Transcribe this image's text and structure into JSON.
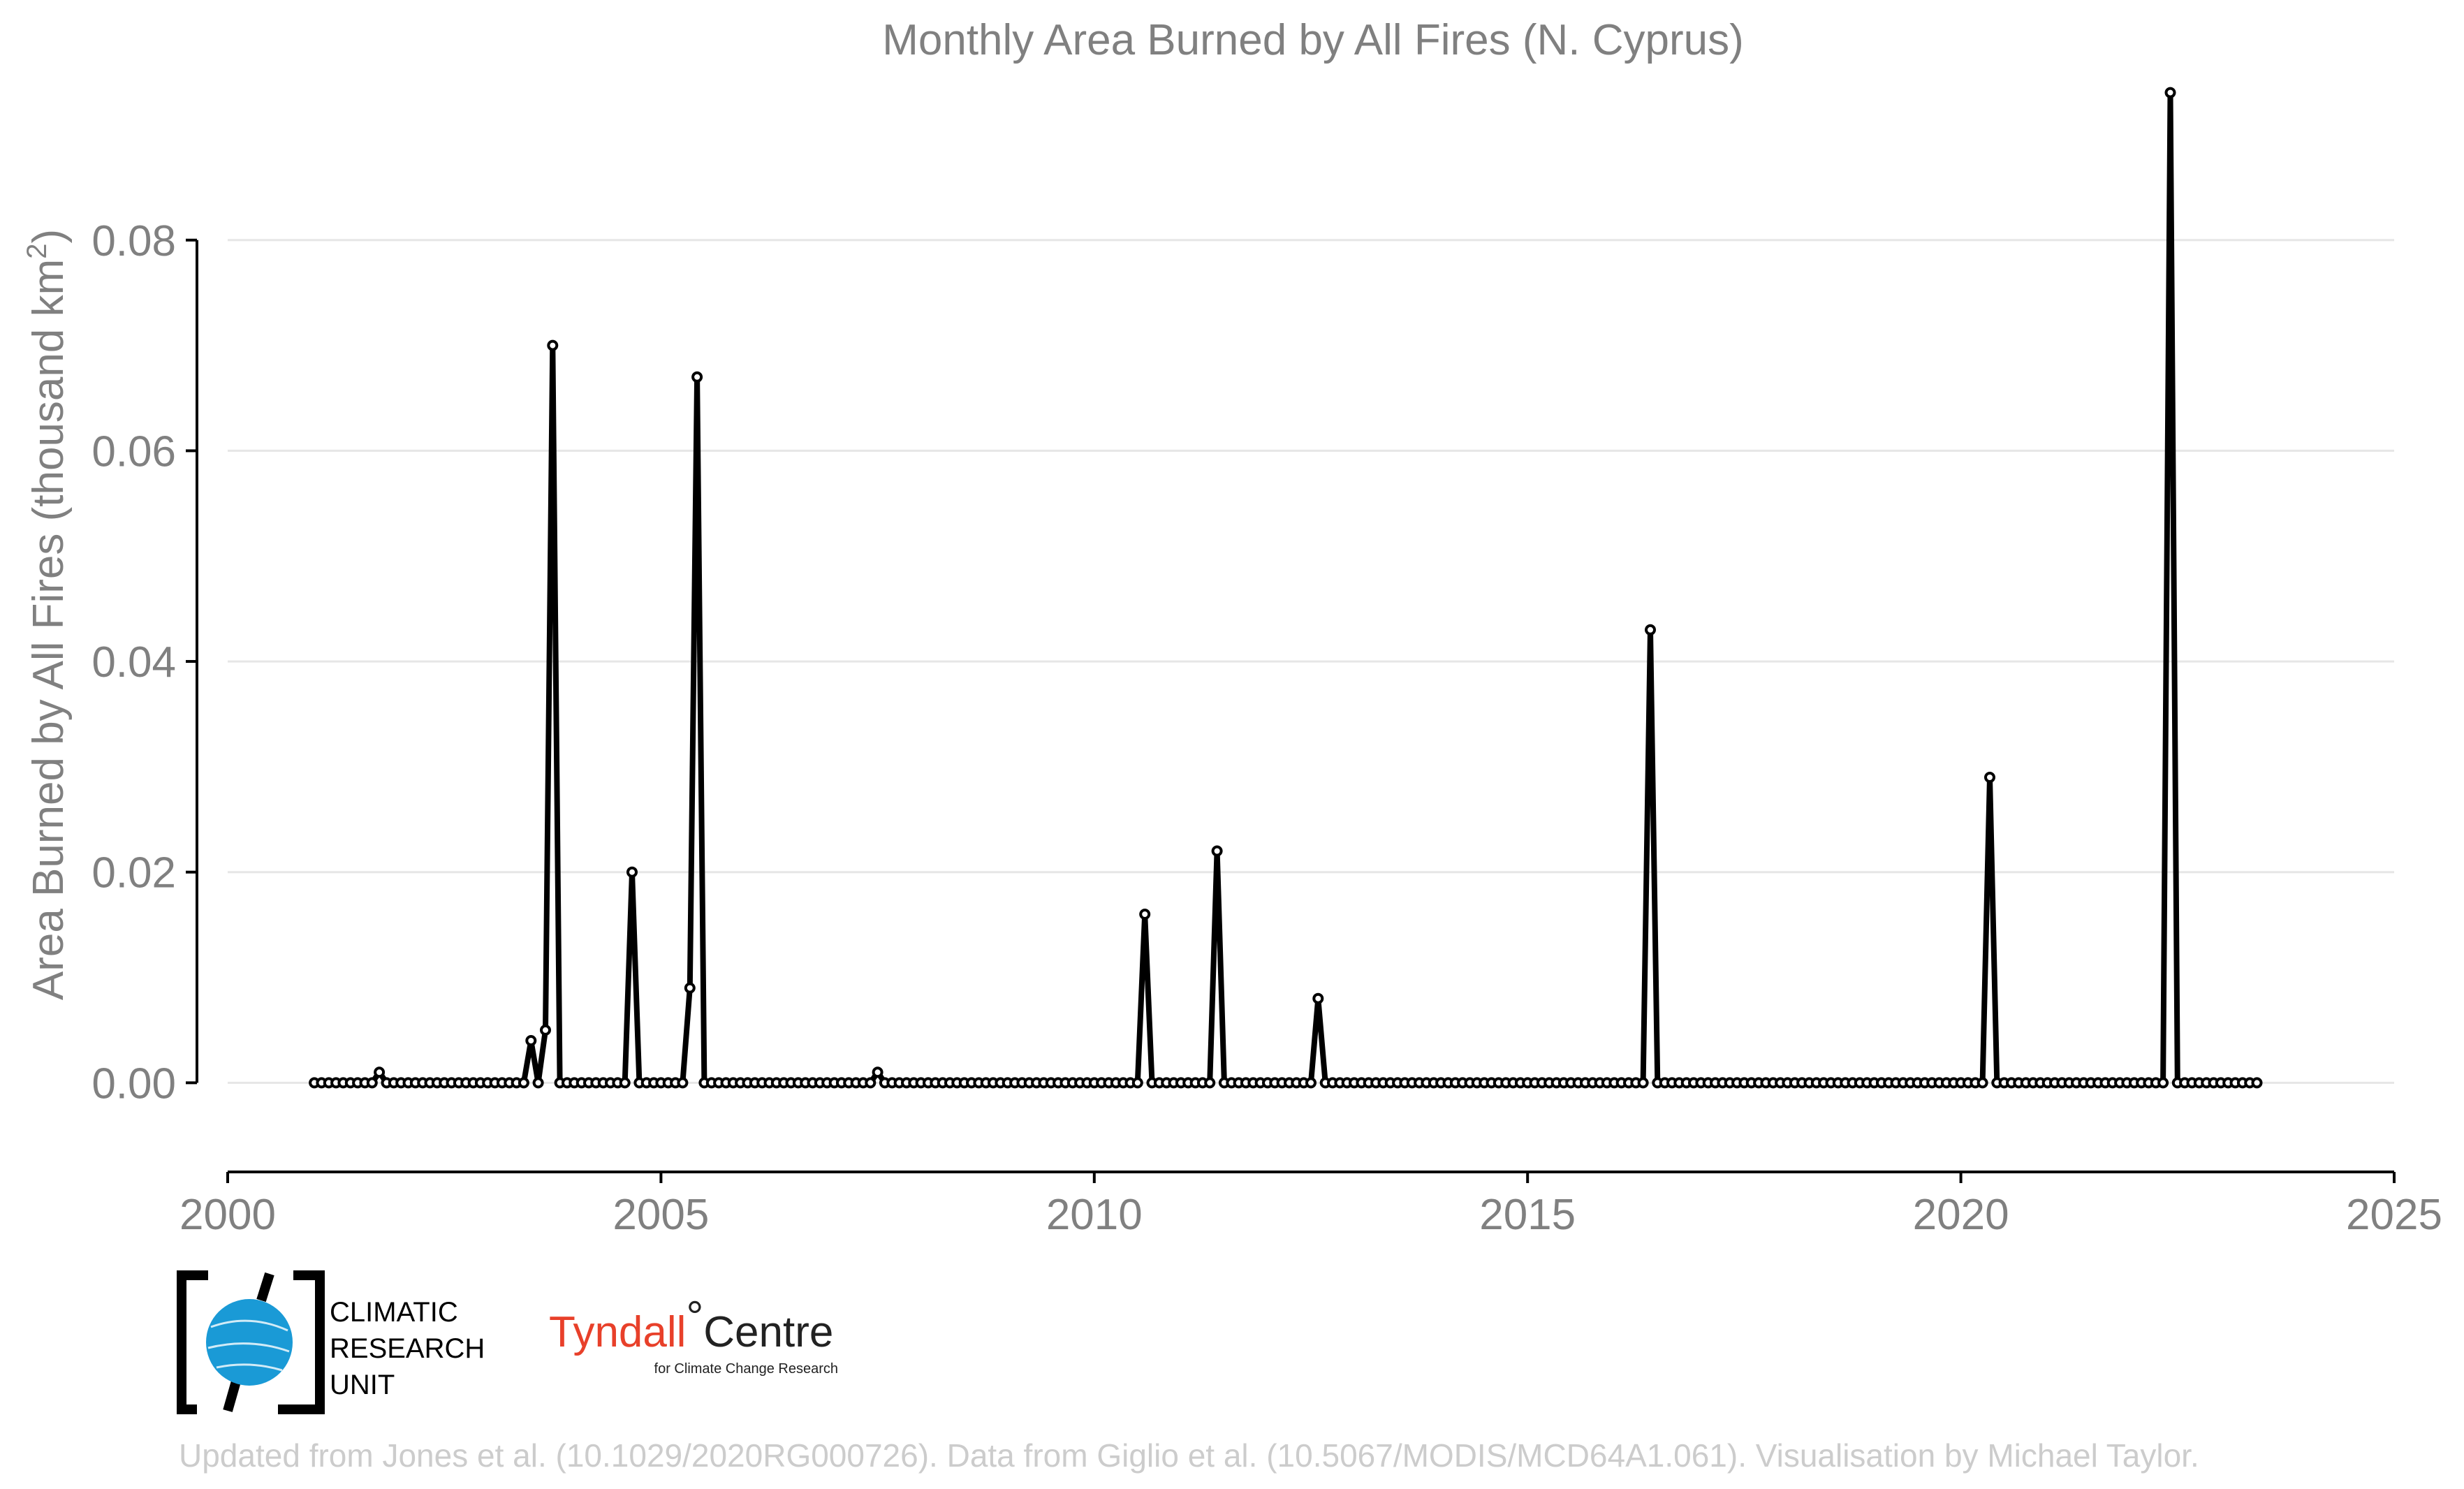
{
  "chart_data": {
    "type": "line",
    "title": "Monthly Area Burned by All Fires (N. Cyprus)",
    "ylabel_main": "Area Burned by All Fires (thousand km",
    "ylabel_sup": "2",
    "ylabel_close": ")",
    "xlabel": "",
    "xlim": [
      2000,
      2025
    ],
    "ylim": [
      -0.0078,
      0.0955
    ],
    "x_ticks": [
      2000,
      2005,
      2010,
      2015,
      2020,
      2025
    ],
    "x_tick_labels": [
      "2000",
      "2005",
      "2010",
      "2015",
      "2020",
      "2025"
    ],
    "y_ticks": [
      0.0,
      0.02,
      0.04,
      0.06,
      0.08
    ],
    "y_tick_labels": [
      "0.00",
      "0.02",
      "0.04",
      "0.06",
      "0.08"
    ],
    "grid": "horizontal",
    "legend": "none",
    "series": [
      {
        "start_year": 2001,
        "start_month": 1,
        "month_step": 1,
        "values": [
          0,
          0,
          0,
          0,
          0,
          0,
          0,
          0,
          0,
          0.001,
          0,
          0,
          0,
          0,
          0,
          0,
          0,
          0,
          0,
          0,
          0,
          0,
          0,
          0,
          0,
          0,
          0,
          0,
          0,
          0,
          0.004,
          0,
          0.005,
          0.07,
          0,
          0,
          0,
          0,
          0,
          0,
          0,
          0,
          0,
          0,
          0.02,
          0,
          0,
          0,
          0,
          0,
          0,
          0,
          0.009,
          0.067,
          0,
          0,
          0,
          0,
          0,
          0,
          0,
          0,
          0,
          0,
          0,
          0,
          0,
          0,
          0,
          0,
          0,
          0,
          0,
          0,
          0,
          0,
          0,
          0,
          0.001,
          0,
          0,
          0,
          0,
          0,
          0,
          0,
          0,
          0,
          0,
          0,
          0,
          0,
          0,
          0,
          0,
          0,
          0,
          0,
          0,
          0,
          0,
          0,
          0,
          0,
          0,
          0,
          0,
          0,
          0,
          0,
          0,
          0,
          0,
          0,
          0,
          0.016,
          0,
          0,
          0,
          0,
          0,
          0,
          0,
          0,
          0,
          0.022,
          0,
          0,
          0,
          0,
          0,
          0,
          0,
          0,
          0,
          0,
          0,
          0,
          0,
          0.008,
          0,
          0,
          0,
          0,
          0,
          0,
          0,
          0,
          0,
          0,
          0,
          0,
          0,
          0,
          0,
          0,
          0,
          0,
          0,
          0,
          0,
          0,
          0,
          0,
          0,
          0,
          0,
          0,
          0,
          0,
          0,
          0,
          0,
          0,
          0,
          0,
          0,
          0,
          0,
          0,
          0,
          0,
          0,
          0,
          0,
          0.043,
          0,
          0,
          0,
          0,
          0,
          0,
          0,
          0,
          0,
          0,
          0,
          0,
          0,
          0,
          0,
          0,
          0,
          0,
          0,
          0,
          0,
          0,
          0,
          0,
          0,
          0,
          0,
          0,
          0,
          0,
          0,
          0,
          0,
          0,
          0,
          0,
          0,
          0,
          0,
          0,
          0,
          0,
          0,
          0,
          0,
          0,
          0.029,
          0,
          0,
          0,
          0,
          0,
          0,
          0,
          0,
          0,
          0,
          0,
          0,
          0,
          0,
          0,
          0,
          0,
          0,
          0,
          0,
          0,
          0,
          0,
          0,
          0.094,
          0,
          0,
          0,
          0,
          0,
          0,
          0,
          0,
          0,
          0,
          0,
          0
        ]
      }
    ]
  },
  "logos": {
    "cru": [
      "CLIMATIC",
      "RESEARCH",
      "UNIT"
    ],
    "tyndall_main": "Tyndall",
    "tyndall_degree": "°",
    "tyndall_centre": "Centre",
    "tyndall_sub": "for Climate Change Research"
  },
  "footer": "Updated from Jones et al. (10.1029/2020RG000726). Data from Giglio et al. (10.5067/MODIS/MCD64A1.061). Visualisation by Michael Taylor.",
  "colors": {
    "line": "#000000",
    "text": "#808080",
    "footer": "#cccccc",
    "tyndall_red": "#e8402a",
    "cru_blue": "#1a9ad6"
  }
}
